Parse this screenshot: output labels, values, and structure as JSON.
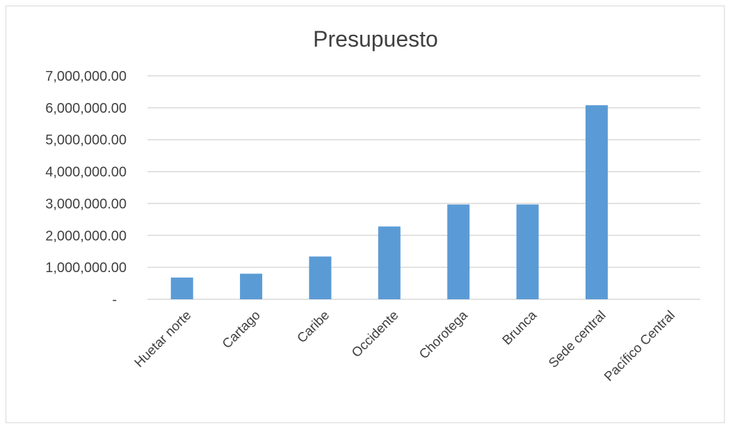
{
  "chart_data": {
    "type": "bar",
    "title": "Presupuesto",
    "categories": [
      "Huetar norte",
      "Cartago",
      "Caribe",
      "Occidente",
      "Chorotega",
      "Brunca",
      "Sede central",
      "Pacífico Central"
    ],
    "values": [
      680000,
      800000,
      1340000,
      2280000,
      2970000,
      2970000,
      6080000,
      0
    ],
    "ylim": [
      0,
      7000000
    ],
    "yticks": [
      {
        "value": 0,
        "label": "-"
      },
      {
        "value": 1000000,
        "label": "1,000,000.00"
      },
      {
        "value": 2000000,
        "label": "2,000,000.00"
      },
      {
        "value": 3000000,
        "label": "3,000,000.00"
      },
      {
        "value": 4000000,
        "label": "4,000,000.00"
      },
      {
        "value": 5000000,
        "label": "5,000,000.00"
      },
      {
        "value": 6000000,
        "label": "6,000,000.00"
      },
      {
        "value": 7000000,
        "label": "7,000,000.00"
      }
    ],
    "grid": true,
    "legend": "none",
    "colors": {
      "bar": "#5b9bd5",
      "grid": "#d9d9d9",
      "text": "#404040"
    }
  }
}
